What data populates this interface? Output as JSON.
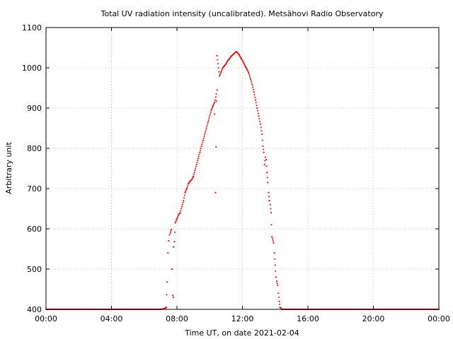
{
  "chart_data": {
    "type": "scatter",
    "title": "Total UV radiation intensity (uncalibrated). Metsähovi Radio Observatory",
    "xlabel": "Time UT, on date 2021-02-04",
    "ylabel": "Arbitrary unit",
    "x_unit": "hours UT",
    "xlim": [
      0,
      24
    ],
    "ylim": [
      400,
      1100
    ],
    "x_ticks": [
      {
        "value": 0,
        "label": "00:00"
      },
      {
        "value": 4,
        "label": "04:00"
      },
      {
        "value": 8,
        "label": "08:00"
      },
      {
        "value": 12,
        "label": "12:00"
      },
      {
        "value": 16,
        "label": "16:00"
      },
      {
        "value": 20,
        "label": "20:00"
      },
      {
        "value": 24,
        "label": "00:00"
      }
    ],
    "y_ticks": [
      {
        "value": 400,
        "label": "400"
      },
      {
        "value": 500,
        "label": "500"
      },
      {
        "value": 600,
        "label": "600"
      },
      {
        "value": 700,
        "label": "700"
      },
      {
        "value": 800,
        "label": "800"
      },
      {
        "value": 900,
        "label": "900"
      },
      {
        "value": 1000,
        "label": "1000"
      },
      {
        "value": 1100,
        "label": "1100"
      }
    ],
    "grid": true,
    "marker_color": "#ff0000",
    "series": [
      {
        "color": "#ff0000",
        "points": [
          [
            0.0,
            400
          ],
          [
            0.5,
            400
          ],
          [
            1.0,
            400
          ],
          [
            1.5,
            400
          ],
          [
            2.0,
            400
          ],
          [
            2.5,
            400
          ],
          [
            3.0,
            400
          ],
          [
            3.5,
            400
          ],
          [
            4.0,
            400
          ],
          [
            4.5,
            400
          ],
          [
            5.0,
            400
          ],
          [
            5.5,
            400
          ],
          [
            6.0,
            400
          ],
          [
            6.5,
            400
          ],
          [
            7.0,
            400
          ],
          [
            7.25,
            402
          ],
          [
            7.35,
            405
          ],
          [
            7.4,
            468
          ],
          [
            7.45,
            540
          ],
          [
            7.5,
            570
          ],
          [
            7.55,
            585
          ],
          [
            7.6,
            590
          ],
          [
            7.65,
            598
          ],
          [
            7.7,
            500
          ],
          [
            7.75,
            435
          ],
          [
            7.78,
            430
          ],
          [
            7.8,
            555
          ],
          [
            7.85,
            568
          ],
          [
            7.9,
            615
          ],
          [
            8.0,
            625
          ],
          [
            8.1,
            635
          ],
          [
            8.2,
            640
          ],
          [
            8.3,
            655
          ],
          [
            8.4,
            670
          ],
          [
            8.5,
            690
          ],
          [
            8.6,
            700
          ],
          [
            8.7,
            712
          ],
          [
            8.8,
            718
          ],
          [
            8.9,
            722
          ],
          [
            9.0,
            730
          ],
          [
            9.1,
            745
          ],
          [
            9.2,
            760
          ],
          [
            9.3,
            775
          ],
          [
            9.4,
            790
          ],
          [
            9.5,
            805
          ],
          [
            9.6,
            820
          ],
          [
            9.7,
            835
          ],
          [
            9.8,
            850
          ],
          [
            9.9,
            865
          ],
          [
            10.0,
            880
          ],
          [
            10.1,
            895
          ],
          [
            10.2,
            905
          ],
          [
            10.3,
            915
          ],
          [
            10.35,
            920
          ],
          [
            10.4,
            935
          ],
          [
            10.45,
            945
          ],
          [
            10.3,
            885
          ],
          [
            10.35,
            690
          ],
          [
            10.45,
            1030
          ],
          [
            10.6,
            980
          ],
          [
            10.7,
            990
          ],
          [
            10.8,
            1000
          ],
          [
            10.9,
            1005
          ],
          [
            11.0,
            1010
          ],
          [
            11.1,
            1018
          ],
          [
            11.2,
            1022
          ],
          [
            11.3,
            1028
          ],
          [
            11.4,
            1032
          ],
          [
            11.5,
            1036
          ],
          [
            11.6,
            1040
          ],
          [
            11.7,
            1038
          ],
          [
            11.8,
            1032
          ],
          [
            11.9,
            1025
          ],
          [
            12.0,
            1018
          ],
          [
            12.1,
            1010
          ],
          [
            12.2,
            1002
          ],
          [
            12.3,
            995
          ],
          [
            12.4,
            985
          ],
          [
            12.5,
            972
          ],
          [
            12.6,
            958
          ],
          [
            12.7,
            940
          ],
          [
            12.8,
            920
          ],
          [
            12.9,
            900
          ],
          [
            13.0,
            880
          ],
          [
            13.1,
            860
          ],
          [
            13.2,
            835
          ],
          [
            13.25,
            805
          ],
          [
            13.3,
            790
          ],
          [
            13.35,
            760
          ],
          [
            13.4,
            778
          ],
          [
            13.45,
            772
          ],
          [
            13.5,
            740
          ],
          [
            13.55,
            715
          ],
          [
            13.6,
            690
          ],
          [
            13.65,
            670
          ],
          [
            13.7,
            660
          ],
          [
            13.75,
            640
          ],
          [
            13.8,
            580
          ],
          [
            13.85,
            575
          ],
          [
            13.9,
            565
          ],
          [
            13.95,
            540
          ],
          [
            14.0,
            510
          ],
          [
            14.05,
            480
          ],
          [
            14.1,
            470
          ],
          [
            14.15,
            460
          ],
          [
            14.2,
            440
          ],
          [
            14.25,
            420
          ],
          [
            14.3,
            405
          ],
          [
            14.4,
            400
          ],
          [
            15.0,
            400
          ],
          [
            16.0,
            400
          ],
          [
            17.0,
            400
          ],
          [
            18.0,
            400
          ],
          [
            19.0,
            400
          ],
          [
            20.0,
            400
          ],
          [
            21.0,
            400
          ],
          [
            22.0,
            400
          ],
          [
            23.0,
            400
          ],
          [
            24.0,
            400
          ]
        ]
      }
    ]
  }
}
